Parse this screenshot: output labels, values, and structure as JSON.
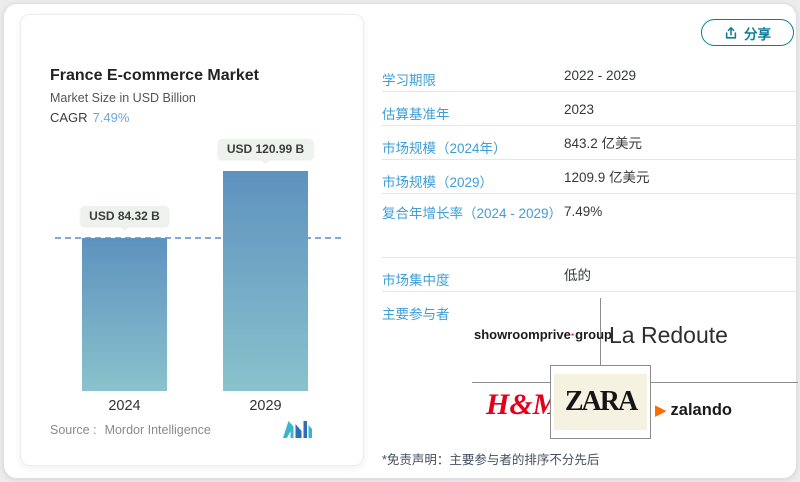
{
  "header": {
    "share_button": {
      "label": "分享"
    }
  },
  "chart_data": {
    "type": "bar",
    "title": "France E-commerce Market",
    "subtitle": "Market Size in USD Billion",
    "cagr_label": "CAGR",
    "cagr_value": "7.49%",
    "categories": [
      "2024",
      "2029"
    ],
    "values": [
      84.32,
      120.99
    ],
    "value_labels": [
      "USD 84.32 B",
      "USD 120.99 B"
    ],
    "unit": "USD Billion",
    "ylim": [
      0,
      135
    ],
    "reference_line": 84.32,
    "grid": "off",
    "legend": "none",
    "source_label": "Source :",
    "source_name": "Mordor Intelligence",
    "bar_gradient_top": "#5e92bf",
    "bar_gradient_bottom": "#8ac2cc",
    "dashed_line_color": "#7fa8e0"
  },
  "stats_table": {
    "rows": [
      {
        "label": "学习期限",
        "value": "2022 - 2029"
      },
      {
        "label": "估算基准年",
        "value": "2023"
      },
      {
        "label": "市场规模（2024年）",
        "value": "843.2 亿美元"
      },
      {
        "label": "市场规模（2029）",
        "value": "1209.9 亿美元"
      },
      {
        "label": "复合年增长率（2024 - 2029）",
        "value": "7.49%"
      },
      {
        "label": "市场集中度",
        "value": "低的"
      },
      {
        "label": "主要参与者",
        "value": ""
      }
    ]
  },
  "players": {
    "showroomprive_part1": "showroomprive",
    "showroomprive_dot": "·",
    "showroomprive_part2": "group",
    "la_redoute": "La Redoute",
    "hm": "H&M",
    "zara": "ZARA",
    "zalando": "zalando",
    "zalando_icon": "▶"
  },
  "disclaimer": "*免责声明：主要参与者的排序不分先后",
  "colors": {
    "accent_blue": "#3f9ed6",
    "teal": "#0d7c9b",
    "hm_red": "#e2001a",
    "zalando_orange": "#ff6900",
    "srp_pink": "#e6007e"
  }
}
